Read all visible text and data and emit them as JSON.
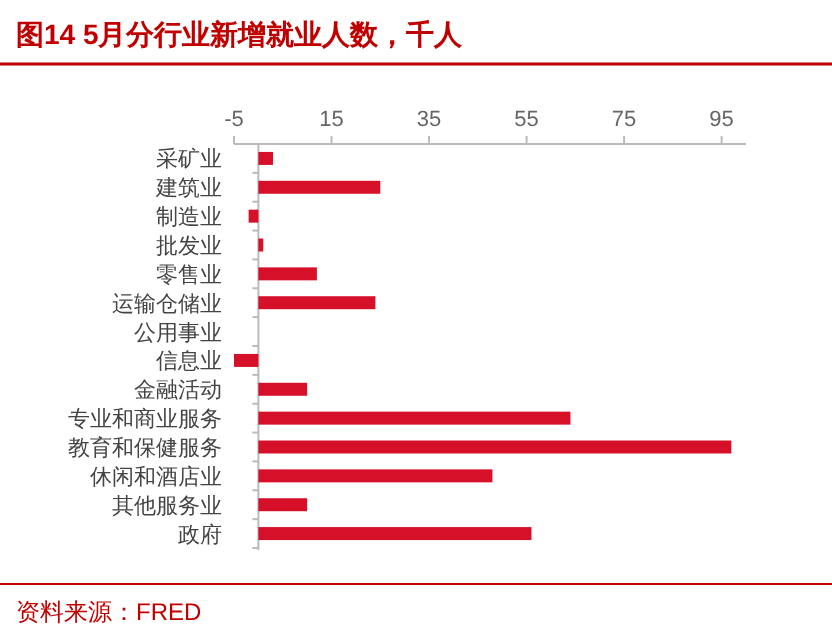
{
  "chart_data": {
    "type": "bar",
    "orientation": "horizontal",
    "title": "图14  5月分行业新增就业人数，千人",
    "categories": [
      "采矿业",
      "建筑业",
      "制造业",
      "批发业",
      "零售业",
      "运输仓储业",
      "公用事业",
      "信息业",
      "金融活动",
      "专业和商业服务",
      "教育和保健服务",
      "休闲和酒店业",
      "其他服务业",
      "政府"
    ],
    "values": [
      3,
      25,
      -2,
      1,
      12,
      24,
      0,
      -5,
      10,
      64,
      97,
      48,
      10,
      56
    ],
    "color": "#d7102a",
    "xlim": [
      -5,
      100
    ],
    "xticks": [
      -5,
      15,
      35,
      55,
      75,
      95
    ],
    "annotations": [
      "资料来源：FRED"
    ]
  }
}
